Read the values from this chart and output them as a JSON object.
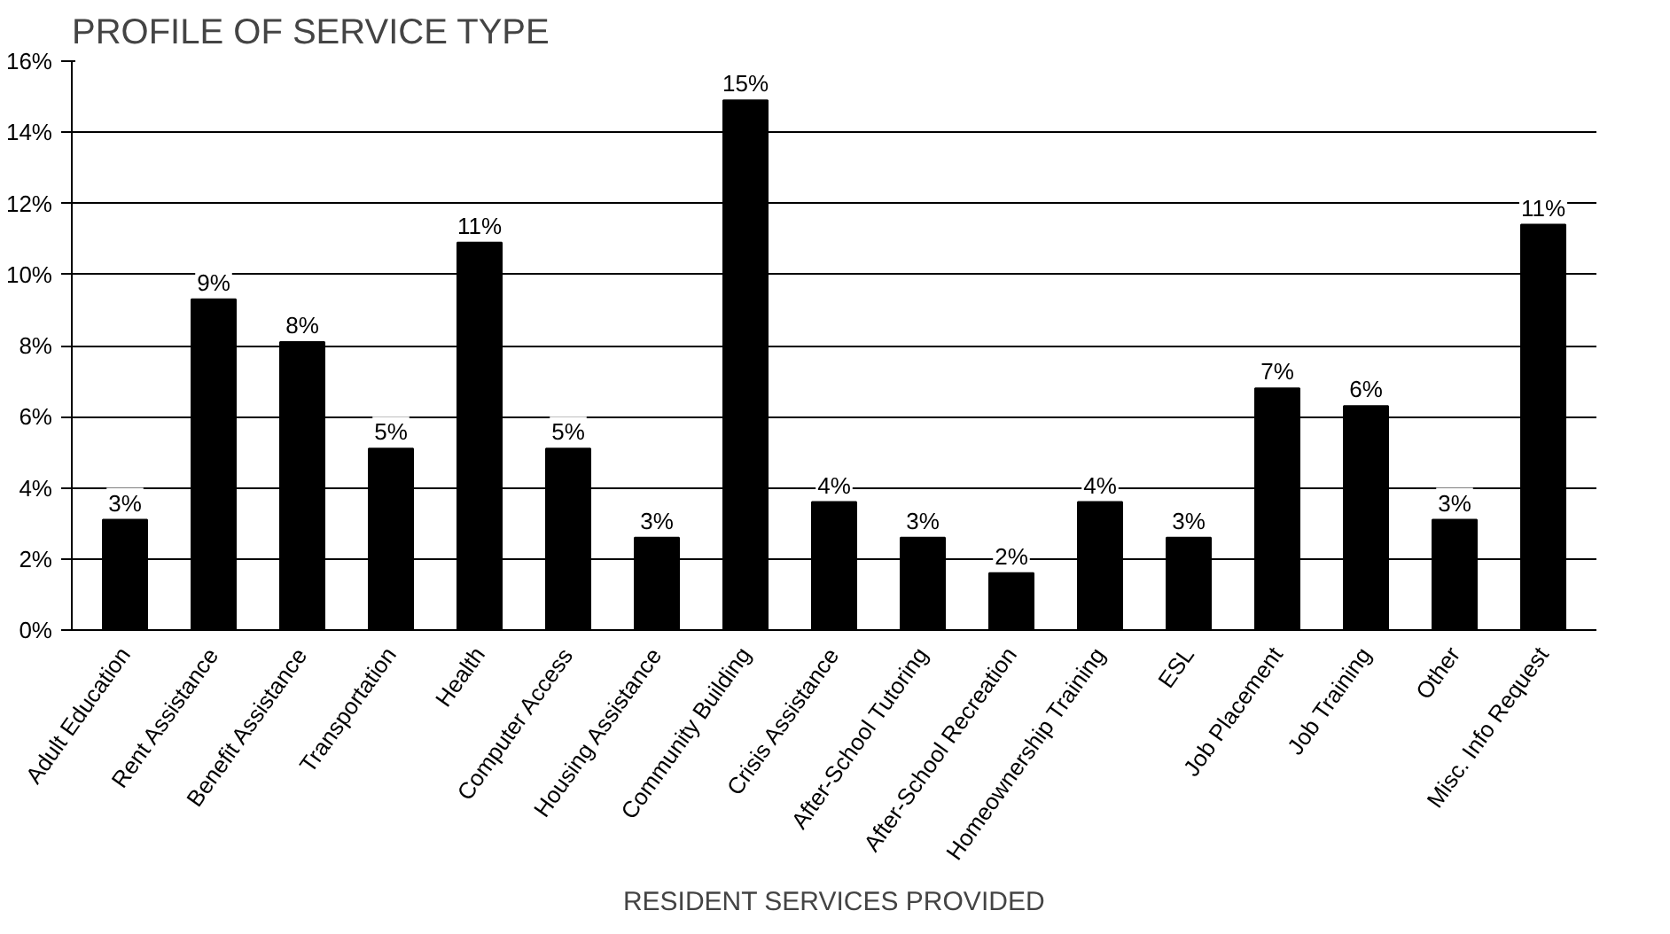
{
  "chart_data": {
    "type": "bar",
    "title": "PROFILE OF SERVICE TYPE",
    "xlabel": "RESIDENT SERVICES PROVIDED",
    "categories": [
      "Adult Education",
      "Rent Assistance",
      "Benefit Assistance",
      "Transportation",
      "Health",
      "Computer Access",
      "Housing Assistance",
      "Community Building",
      "Crisis Assistance",
      "After-School Tutoring",
      "After-School Recreation",
      "Homeownership Training",
      "ESL",
      "Job Placement",
      "Job Training",
      "Other",
      "Misc. Info Request"
    ],
    "values": [
      3.1,
      9.3,
      8.1,
      5.1,
      10.9,
      5.1,
      2.6,
      14.9,
      3.6,
      2.6,
      1.6,
      3.6,
      2.6,
      6.8,
      6.3,
      3.1,
      11.4
    ],
    "value_labels": [
      "3%",
      "9%",
      "8%",
      "5%",
      "11%",
      "5%",
      "3%",
      "15%",
      "4%",
      "3%",
      "2%",
      "4%",
      "3%",
      "7%",
      "6%",
      "3%",
      "11%"
    ],
    "color": "#000000",
    "ylim": [
      0,
      16
    ],
    "yticks": [
      {
        "value": 0,
        "label": "0%"
      },
      {
        "value": 2,
        "label": "2%"
      },
      {
        "value": 4,
        "label": "4%"
      },
      {
        "value": 6,
        "label": "6%"
      },
      {
        "value": 8,
        "label": "8%"
      },
      {
        "value": 10,
        "label": "10%"
      },
      {
        "value": 12,
        "label": "12%"
      },
      {
        "value": 14,
        "label": "14%"
      },
      {
        "value": 16,
        "label": "16%"
      }
    ],
    "grid": "y"
  }
}
